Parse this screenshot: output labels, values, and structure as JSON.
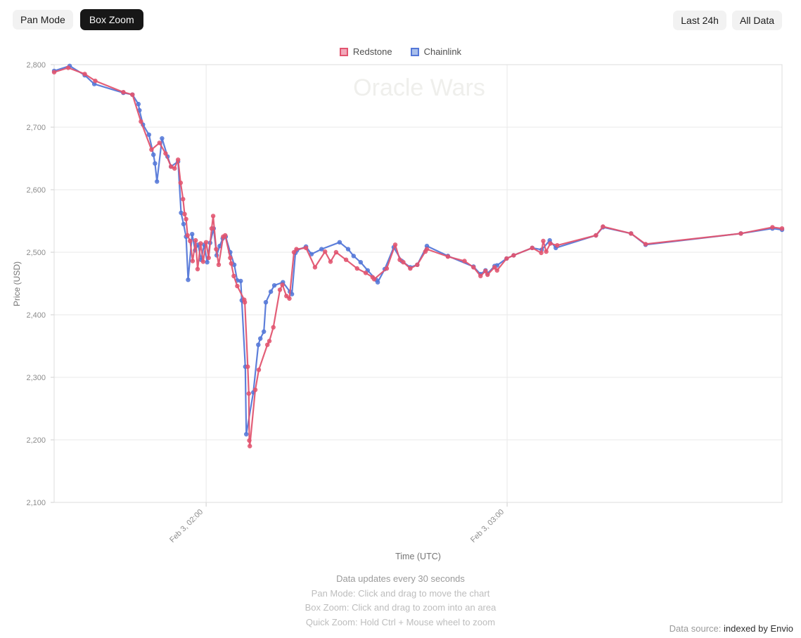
{
  "toolbar": {
    "pan_mode": "Pan Mode",
    "box_zoom": "Box Zoom",
    "last_24h": "Last 24h",
    "all_data": "All Data",
    "active_mode": "Box Zoom"
  },
  "watermark": "Oracle Wars",
  "footer": {
    "update_note": "Data updates every 30 seconds",
    "instructions": [
      "Pan Mode: Click and drag to move the chart",
      "Box Zoom: Click and drag to zoom into an area",
      "Quick Zoom: Hold Ctrl + Mouse wheel to zoom"
    ]
  },
  "data_source": {
    "prefix": "Data source:",
    "value": "indexed by Envio"
  },
  "chart_data": {
    "type": "line",
    "title": "Oracle Wars",
    "xlabel": "Time (UTC)",
    "ylabel": "Price (USD)",
    "x_unit": "minutes since Feb 3 00:00 UTC",
    "x_range": [
      89.7,
      234.8
    ],
    "y_range": [
      2100,
      2800
    ],
    "y_ticks": [
      2100,
      2200,
      2300,
      2400,
      2500,
      2600,
      2700,
      2800
    ],
    "x_ticks": [
      {
        "t": 120,
        "label": "Feb 3, 02:00"
      },
      {
        "t": 180,
        "label": "Feb 3, 03:00"
      }
    ],
    "grid": true,
    "legend_position": "top-center",
    "series": [
      {
        "name": "Chainlink",
        "color": "#5578d8",
        "fill": "#a9bfeb",
        "points": [
          [
            89.7,
            2790
          ],
          [
            92.8,
            2798
          ],
          [
            95.8,
            2783
          ],
          [
            97.7,
            2769
          ],
          [
            103.5,
            2755
          ],
          [
            105.3,
            2752
          ],
          [
            106.5,
            2737
          ],
          [
            106.7,
            2727
          ],
          [
            107.4,
            2704
          ],
          [
            108.6,
            2688
          ],
          [
            109.5,
            2656
          ],
          [
            109.8,
            2642
          ],
          [
            110.2,
            2613
          ],
          [
            111.2,
            2682
          ],
          [
            112.3,
            2653
          ],
          [
            113.0,
            2637
          ],
          [
            114.4,
            2645
          ],
          [
            115.0,
            2563
          ],
          [
            115.5,
            2545
          ],
          [
            116.0,
            2525
          ],
          [
            116.4,
            2456
          ],
          [
            117.2,
            2529
          ],
          [
            117.8,
            2503
          ],
          [
            118.4,
            2512
          ],
          [
            119.0,
            2488
          ],
          [
            119.6,
            2512
          ],
          [
            120.2,
            2484
          ],
          [
            120.8,
            2515
          ],
          [
            121.5,
            2538
          ],
          [
            122.1,
            2495
          ],
          [
            122.7,
            2510
          ],
          [
            123.3,
            2522
          ],
          [
            123.9,
            2525
          ],
          [
            124.8,
            2500
          ],
          [
            125.6,
            2480
          ],
          [
            126.2,
            2455
          ],
          [
            126.9,
            2454
          ],
          [
            127.1,
            2423
          ],
          [
            127.8,
            2317
          ],
          [
            128.0,
            2209
          ],
          [
            129.4,
            2276
          ],
          [
            130.4,
            2352
          ],
          [
            130.8,
            2362
          ],
          [
            131.5,
            2373
          ],
          [
            131.9,
            2420
          ],
          [
            132.9,
            2437
          ],
          [
            133.6,
            2447
          ],
          [
            135.3,
            2452
          ],
          [
            136.7,
            2437
          ],
          [
            137.1,
            2433
          ],
          [
            137.8,
            2499
          ],
          [
            138.1,
            2503
          ],
          [
            139.9,
            2509
          ],
          [
            141.0,
            2497
          ],
          [
            143.0,
            2505
          ],
          [
            146.6,
            2516
          ],
          [
            148.3,
            2505
          ],
          [
            149.4,
            2494
          ],
          [
            150.8,
            2484
          ],
          [
            152.2,
            2471
          ],
          [
            153.9,
            2456
          ],
          [
            154.2,
            2452
          ],
          [
            155.6,
            2473
          ],
          [
            157.4,
            2508
          ],
          [
            159.0,
            2486
          ],
          [
            160.7,
            2476
          ],
          [
            162.1,
            2480
          ],
          [
            164.0,
            2510
          ],
          [
            168.2,
            2494
          ],
          [
            173.3,
            2477
          ],
          [
            174.7,
            2465
          ],
          [
            175.7,
            2471
          ],
          [
            176.1,
            2466
          ],
          [
            177.5,
            2478
          ],
          [
            178.0,
            2479
          ],
          [
            179.9,
            2490
          ],
          [
            181.3,
            2495
          ],
          [
            185.0,
            2507
          ],
          [
            186.9,
            2504
          ],
          [
            188.5,
            2519
          ],
          [
            189.7,
            2507
          ],
          [
            197.7,
            2527
          ],
          [
            199.1,
            2540
          ],
          [
            204.7,
            2530
          ],
          [
            207.6,
            2512
          ],
          [
            226.6,
            2530
          ],
          [
            232.9,
            2538
          ],
          [
            234.8,
            2536
          ]
        ]
      },
      {
        "name": "Redstone",
        "color": "#e25570",
        "fill": "#f1a9ba",
        "points": [
          [
            89.7,
            2788
          ],
          [
            92.5,
            2795
          ],
          [
            95.8,
            2785
          ],
          [
            97.9,
            2774
          ],
          [
            103.5,
            2756
          ],
          [
            105.3,
            2752
          ],
          [
            107.0,
            2709
          ],
          [
            109.1,
            2664
          ],
          [
            110.7,
            2675
          ],
          [
            111.9,
            2658
          ],
          [
            113.0,
            2637
          ],
          [
            113.7,
            2634
          ],
          [
            114.4,
            2648
          ],
          [
            114.9,
            2611
          ],
          [
            115.4,
            2585
          ],
          [
            115.7,
            2561
          ],
          [
            116.0,
            2553
          ],
          [
            116.3,
            2527
          ],
          [
            116.8,
            2518
          ],
          [
            117.3,
            2486
          ],
          [
            117.9,
            2519
          ],
          [
            118.3,
            2473
          ],
          [
            118.9,
            2514
          ],
          [
            119.4,
            2485
          ],
          [
            120.0,
            2516
          ],
          [
            120.5,
            2491
          ],
          [
            121.1,
            2538
          ],
          [
            121.4,
            2558
          ],
          [
            122.0,
            2505
          ],
          [
            122.5,
            2480
          ],
          [
            123.4,
            2525
          ],
          [
            123.8,
            2527
          ],
          [
            124.8,
            2491
          ],
          [
            125.0,
            2482
          ],
          [
            125.5,
            2462
          ],
          [
            126.2,
            2446
          ],
          [
            127.6,
            2424
          ],
          [
            127.7,
            2420
          ],
          [
            128.3,
            2317
          ],
          [
            128.5,
            2274
          ],
          [
            128.6,
            2199
          ],
          [
            128.7,
            2190
          ],
          [
            129.8,
            2280
          ],
          [
            130.5,
            2312
          ],
          [
            132.2,
            2352
          ],
          [
            132.6,
            2358
          ],
          [
            133.4,
            2380
          ],
          [
            134.7,
            2440
          ],
          [
            135.2,
            2448
          ],
          [
            136.0,
            2430
          ],
          [
            136.6,
            2426
          ],
          [
            137.5,
            2500
          ],
          [
            138.0,
            2505
          ],
          [
            139.9,
            2507
          ],
          [
            141.7,
            2476
          ],
          [
            143.7,
            2501
          ],
          [
            144.8,
            2485
          ],
          [
            145.9,
            2500
          ],
          [
            147.9,
            2488
          ],
          [
            150.1,
            2474
          ],
          [
            151.8,
            2467
          ],
          [
            153.2,
            2460
          ],
          [
            153.5,
            2457
          ],
          [
            156.0,
            2474
          ],
          [
            157.7,
            2512
          ],
          [
            158.6,
            2488
          ],
          [
            159.3,
            2484
          ],
          [
            160.7,
            2474
          ],
          [
            162.1,
            2480
          ],
          [
            163.7,
            2501
          ],
          [
            164.0,
            2505
          ],
          [
            168.2,
            2493
          ],
          [
            171.5,
            2486
          ],
          [
            173.3,
            2476
          ],
          [
            174.7,
            2462
          ],
          [
            175.7,
            2470
          ],
          [
            176.1,
            2464
          ],
          [
            177.5,
            2476
          ],
          [
            178.0,
            2471
          ],
          [
            179.9,
            2490
          ],
          [
            181.3,
            2495
          ],
          [
            185.0,
            2507
          ],
          [
            186.8,
            2499
          ],
          [
            187.2,
            2518
          ],
          [
            187.8,
            2501
          ],
          [
            188.6,
            2514
          ],
          [
            190.0,
            2511
          ],
          [
            197.7,
            2527
          ],
          [
            199.1,
            2541
          ],
          [
            204.7,
            2530
          ],
          [
            207.6,
            2513
          ],
          [
            226.6,
            2530
          ],
          [
            232.9,
            2540
          ],
          [
            234.8,
            2538
          ]
        ]
      }
    ]
  }
}
